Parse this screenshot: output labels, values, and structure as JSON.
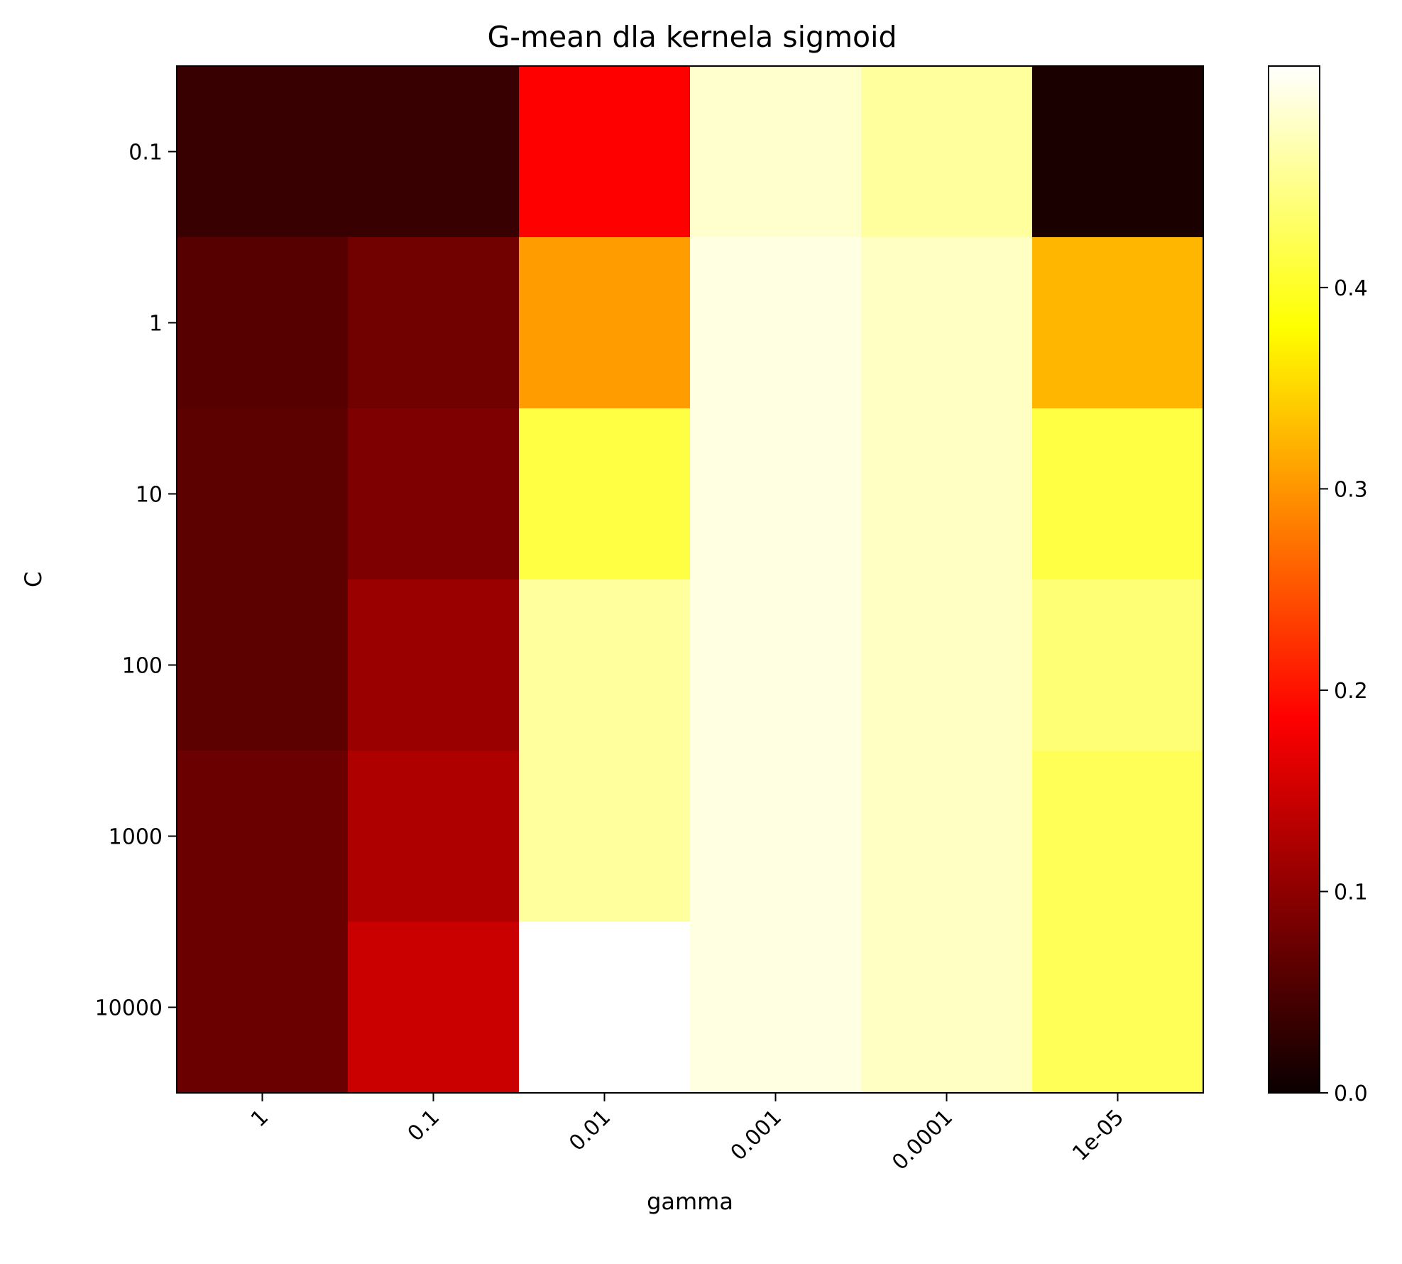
{
  "chart_data": {
    "type": "heatmap",
    "title": "G-mean dla kernela sigmoid",
    "xlabel": "gamma",
    "ylabel": "C",
    "x_categories": [
      "1",
      "0.1",
      "0.01",
      "0.001",
      "0.0001",
      "1e-05"
    ],
    "y_categories": [
      "0.1",
      "1",
      "10",
      "100",
      "1000",
      "10000"
    ],
    "values": [
      [
        0.033,
        0.033,
        0.18,
        0.485,
        0.46,
        0.012
      ],
      [
        0.055,
        0.075,
        0.305,
        0.495,
        0.48,
        0.325
      ],
      [
        0.06,
        0.085,
        0.415,
        0.495,
        0.48,
        0.415
      ],
      [
        0.06,
        0.105,
        0.46,
        0.495,
        0.48,
        0.44
      ],
      [
        0.07,
        0.12,
        0.46,
        0.495,
        0.48,
        0.425
      ],
      [
        0.07,
        0.14,
        0.51,
        0.495,
        0.48,
        0.425
      ]
    ],
    "colormap": "hot",
    "color_range": [
      0,
      0.51
    ],
    "colorbar_ticks": [
      {
        "value": 0.0,
        "label": "0.0"
      },
      {
        "value": 0.1,
        "label": "0.1"
      },
      {
        "value": 0.2,
        "label": "0.2"
      },
      {
        "value": 0.3,
        "label": "0.3"
      },
      {
        "value": 0.4,
        "label": "0.4"
      }
    ],
    "grid": false,
    "colorbar": "right"
  }
}
